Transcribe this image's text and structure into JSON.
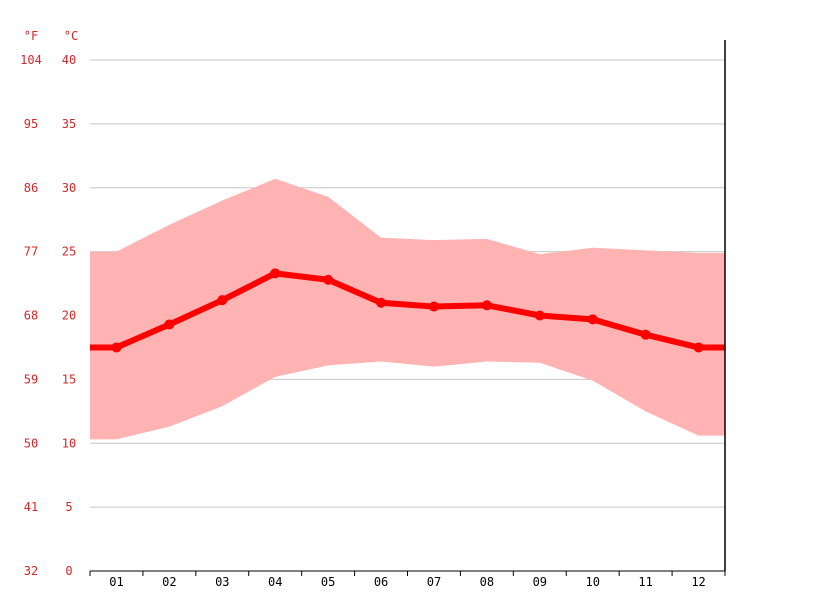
{
  "colors": {
    "line": "#ff0000",
    "band": "#ffb3b3",
    "axis_labels": "#d62728",
    "grid": "#c8c8c8",
    "axis": "#000000"
  },
  "units": {
    "f": "°F",
    "c": "°C"
  },
  "chart_data": {
    "type": "line",
    "categories": [
      "01",
      "02",
      "03",
      "04",
      "05",
      "06",
      "07",
      "08",
      "09",
      "10",
      "11",
      "12"
    ],
    "series": [
      {
        "values": [
          17.5,
          19.3,
          21.2,
          23.3,
          22.8,
          21.0,
          20.7,
          20.8,
          20.0,
          19.7,
          18.5,
          17.5
        ]
      }
    ],
    "band": {
      "high": [
        25.0,
        27.1,
        29.0,
        30.7,
        29.3,
        26.1,
        25.9,
        26.0,
        24.8,
        25.3,
        25.1,
        24.9
      ],
      "low": [
        10.3,
        11.3,
        12.9,
        15.2,
        16.1,
        16.4,
        16.0,
        16.4,
        16.3,
        14.9,
        12.5,
        10.6
      ]
    },
    "ylim": [
      0,
      40
    ],
    "y_ticks_c": [
      "0",
      "5",
      "10",
      "15",
      "20",
      "25",
      "30",
      "35",
      "40"
    ],
    "y_ticks_f": [
      "32",
      "41",
      "50",
      "59",
      "68",
      "77",
      "86",
      "95",
      "104"
    ],
    "grid": true
  }
}
